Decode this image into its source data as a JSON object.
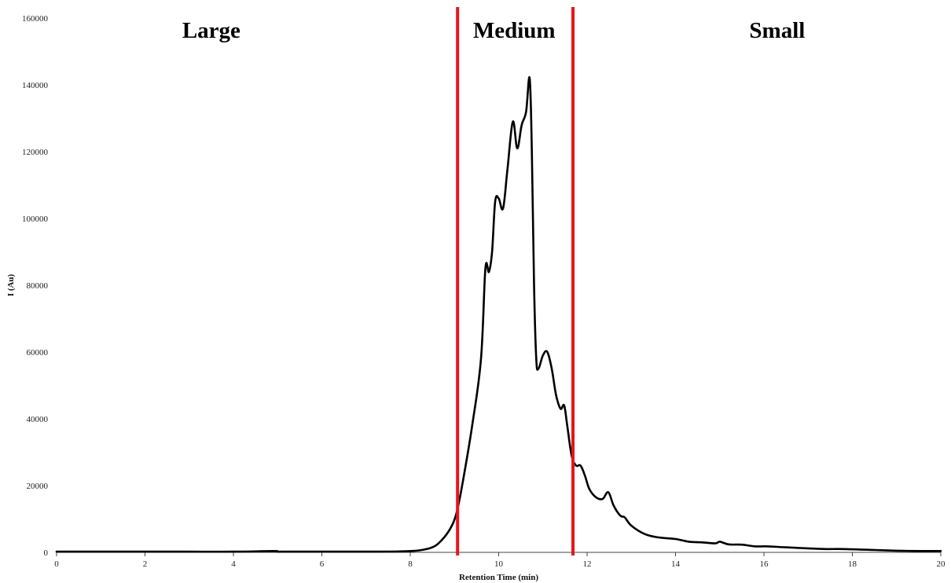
{
  "chart_data": {
    "type": "line",
    "title": "",
    "xlabel": "Retention Time (min)",
    "ylabel": "I (Au)",
    "xlim": [
      0,
      20
    ],
    "ylim": [
      0,
      160000
    ],
    "x_ticks": [
      0,
      2,
      4,
      6,
      8,
      10,
      12,
      14,
      16,
      18,
      20
    ],
    "y_ticks": [
      0,
      20000,
      40000,
      60000,
      80000,
      100000,
      120000,
      140000,
      160000
    ],
    "grid": false,
    "legend": "none",
    "series": [
      {
        "color": "#000000",
        "x": [
          0,
          1,
          2,
          3,
          4,
          4.9,
          5,
          5.1,
          6,
          7,
          7.8,
          8.2,
          8.5,
          8.7,
          8.9,
          9.05,
          9.2,
          9.4,
          9.6,
          9.7,
          9.78,
          9.85,
          9.92,
          10.0,
          10.1,
          10.2,
          10.32,
          10.42,
          10.52,
          10.62,
          10.7,
          10.75,
          10.8,
          10.85,
          10.9,
          11.0,
          11.1,
          11.2,
          11.3,
          11.4,
          11.48,
          11.55,
          11.65,
          11.75,
          11.85,
          11.95,
          12.05,
          12.2,
          12.35,
          12.48,
          12.6,
          12.75,
          12.85,
          13.0,
          13.3,
          13.6,
          14.0,
          14.3,
          14.6,
          14.9,
          15.0,
          15.2,
          15.5,
          15.8,
          16.1,
          16.5,
          17.0,
          17.4,
          17.8,
          18.5,
          19.0,
          19.5,
          20.0
        ],
        "y": [
          200,
          200,
          200,
          200,
          200,
          400,
          200,
          200,
          200,
          200,
          300,
          600,
          1500,
          3500,
          7000,
          12000,
          22000,
          38000,
          58000,
          85000,
          84000,
          90000,
          105000,
          106000,
          103000,
          115000,
          129000,
          121000,
          128000,
          132000,
          142000,
          120000,
          80000,
          58000,
          55000,
          59000,
          60000,
          55000,
          47000,
          43000,
          44000,
          38000,
          29000,
          26000,
          26000,
          23000,
          19000,
          16500,
          16000,
          18000,
          14000,
          11000,
          10500,
          8000,
          5500,
          4500,
          4000,
          3200,
          3000,
          2700,
          3200,
          2400,
          2300,
          1800,
          1800,
          1500,
          1200,
          1000,
          1000,
          700,
          500,
          400,
          400
        ]
      }
    ],
    "region_boundaries": [
      9.07,
      11.68
    ],
    "boundary_color": "#e8141b",
    "regions": [
      {
        "label": "Large",
        "x_center": 3.5
      },
      {
        "label": "Medium",
        "x_center": 10.35
      },
      {
        "label": "Small",
        "x_center": 16.3
      }
    ]
  }
}
